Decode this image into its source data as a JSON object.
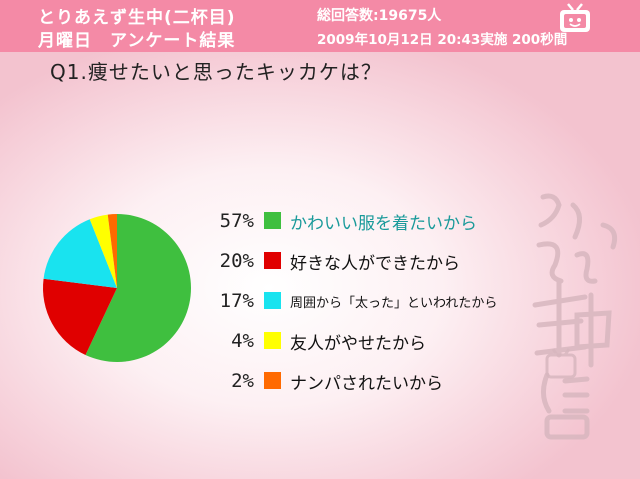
{
  "header": {
    "title_line1": "とりあえず生中(二杯目)",
    "title_line2": "月曜日　アンケート結果",
    "total": "総回答数:19675人",
    "date": "2009年10月12日 20:43実施 200秒間",
    "icon": "tv-icon",
    "bg_color": "#f48aa6"
  },
  "question": "Q1.痩せたいと思ったキッカケは？",
  "chart_data": {
    "type": "pie",
    "categories": [
      "かわいい服を着たいから",
      "好きな人ができたから",
      "周囲から「太った」といわれたから",
      "友人がやせたから",
      "ナンパされたいから"
    ],
    "values": [
      57,
      20,
      17,
      4,
      2
    ],
    "labels": [
      "57%",
      "20%",
      "17%",
      "4%",
      "2%"
    ],
    "colors": [
      "#3fbf3f",
      "#e00000",
      "#19e3ef",
      "#ffff00",
      "#ff6a00"
    ],
    "legend_placement": "right"
  },
  "highlight_color": "#1a9a9a",
  "watermark": {
    "text_line1": "とりあえず",
    "text_line2": "生中",
    "text_line3": "二杯目"
  }
}
